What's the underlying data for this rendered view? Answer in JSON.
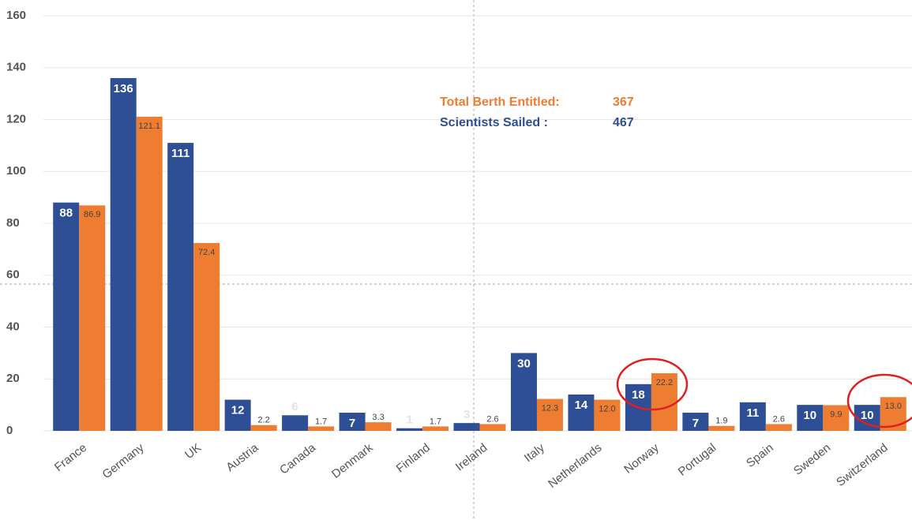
{
  "chart_data": {
    "type": "bar",
    "categories": [
      "France",
      "Germany",
      "UK",
      "Austria",
      "Canada",
      "Denmark",
      "Finland",
      "Ireland",
      "Italy",
      "Netherlands",
      "Norway",
      "Portugal",
      "Spain",
      "Sweden",
      "Switzerland"
    ],
    "series": [
      {
        "color": "#2e4f96",
        "values": [
          88,
          136,
          111,
          12,
          6,
          7,
          1,
          3,
          30,
          14,
          18,
          7,
          11,
          10,
          10
        ]
      },
      {
        "color": "#ee7d31",
        "values": [
          86.9,
          121.1,
          72.4,
          2.2,
          1.7,
          3.3,
          1.7,
          2.6,
          12.3,
          12.0,
          22.2,
          1.9,
          2.6,
          9.9,
          13.0
        ],
        "value_labels": [
          "86.9",
          "121.1",
          "72.4",
          "2.2",
          "1.7",
          "3.3",
          "1.7",
          "2.6",
          "12.3",
          "12.0",
          "22.2",
          "1.9",
          "2.6",
          "9.9",
          "13.0"
        ]
      }
    ],
    "annotations": [
      {
        "label": "Total Berth Entitled:",
        "value": 367,
        "color": "#ee7d31"
      },
      {
        "label": "Scientists Sailed :",
        "value": 467,
        "color": "#2e4f96"
      }
    ],
    "ylim": [
      0,
      160
    ],
    "yticks": [
      0,
      20,
      40,
      60,
      80,
      100,
      120,
      140,
      160
    ],
    "grid": true
  }
}
